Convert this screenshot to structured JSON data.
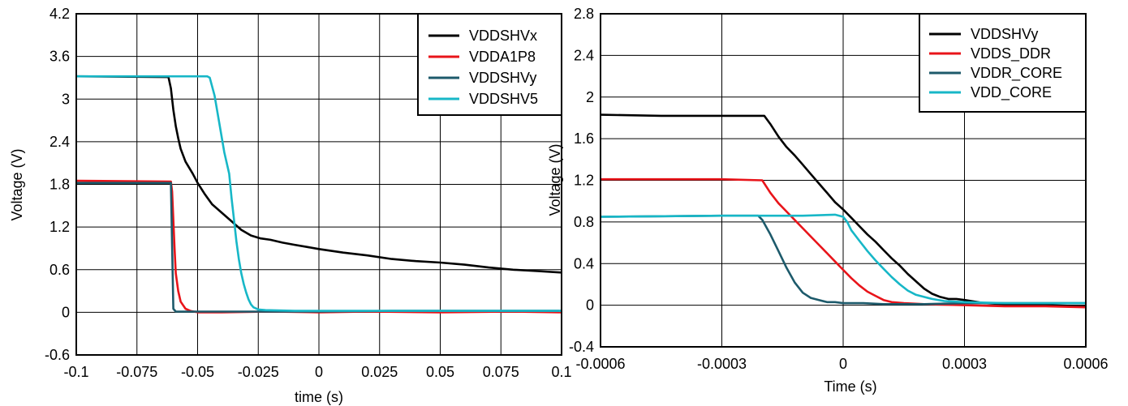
{
  "chart_data": [
    {
      "type": "line",
      "xlabel": "time (s)",
      "ylabel": "Voltage (V)",
      "xlim": [
        -0.1,
        0.1
      ],
      "ylim": [
        -0.6,
        4.2
      ],
      "xticks": [
        -0.1,
        -0.075,
        -0.05,
        -0.025,
        0,
        0.025,
        0.05,
        0.075,
        0.1
      ],
      "xtick_labels": [
        "-0.1",
        "-0.075",
        "-0.05",
        "-0.025",
        "0",
        "0.025",
        "0.05",
        "0.075",
        "0.1"
      ],
      "yticks": [
        -0.6,
        0,
        0.6,
        1.2,
        1.8,
        2.4,
        3,
        3.6,
        4.2
      ],
      "ytick_labels": [
        "-0.6",
        "0",
        "0.6",
        "1.2",
        "1.8",
        "2.4",
        "3",
        "3.6",
        "4.2"
      ],
      "grid": true,
      "legend_position": "top-right",
      "series": [
        {
          "name": "VDDSHVx",
          "color": "#000000",
          "x": [
            -0.1,
            -0.062,
            -0.061,
            -0.06,
            -0.059,
            -0.058,
            -0.057,
            -0.055,
            -0.052,
            -0.05,
            -0.047,
            -0.044,
            -0.04,
            -0.036,
            -0.032,
            -0.028,
            -0.024,
            -0.02,
            -0.015,
            -0.01,
            -0.005,
            0,
            0.01,
            0.02,
            0.03,
            0.04,
            0.05,
            0.06,
            0.07,
            0.08,
            0.09,
            0.1
          ],
          "y": [
            3.32,
            3.31,
            3.15,
            2.85,
            2.62,
            2.45,
            2.3,
            2.12,
            1.95,
            1.82,
            1.66,
            1.52,
            1.4,
            1.28,
            1.16,
            1.08,
            1.04,
            1.02,
            0.98,
            0.95,
            0.92,
            0.89,
            0.84,
            0.8,
            0.75,
            0.72,
            0.7,
            0.67,
            0.63,
            0.6,
            0.58,
            0.56
          ]
        },
        {
          "name": "VDDA1P8",
          "color": "#e8141a",
          "x": [
            -0.1,
            -0.061,
            -0.0605,
            -0.06,
            -0.0595,
            -0.059,
            -0.058,
            -0.057,
            -0.055,
            -0.053,
            -0.05,
            -0.04,
            -0.02,
            0,
            0.02,
            0.05,
            0.08,
            0.1
          ],
          "y": [
            1.85,
            1.84,
            1.7,
            1.3,
            0.9,
            0.55,
            0.3,
            0.15,
            0.05,
            0.02,
            0,
            0,
            0.01,
            0,
            0.01,
            0,
            0.01,
            0
          ]
        },
        {
          "name": "VDDSHVy",
          "color": "#1d5a6b",
          "x": [
            -0.1,
            -0.061,
            -0.06,
            -0.059,
            -0.05,
            -0.03,
            0,
            0.03,
            0.06,
            0.1
          ],
          "y": [
            1.82,
            1.82,
            0.05,
            0.01,
            0.01,
            0.01,
            0.01,
            0.02,
            0.02,
            0.02
          ]
        },
        {
          "name": "VDDSHV5",
          "color": "#17b7c7",
          "x": [
            -0.1,
            -0.046,
            -0.045,
            -0.043,
            -0.041,
            -0.039,
            -0.037,
            -0.036,
            -0.035,
            -0.034,
            -0.033,
            -0.032,
            -0.031,
            -0.03,
            -0.029,
            -0.028,
            -0.027,
            -0.025,
            -0.022,
            -0.01,
            0,
            0.05,
            0.1
          ],
          "y": [
            3.32,
            3.32,
            3.3,
            3.05,
            2.65,
            2.25,
            1.95,
            1.6,
            1.3,
            1.0,
            0.75,
            0.55,
            0.4,
            0.28,
            0.18,
            0.11,
            0.07,
            0.04,
            0.03,
            0.02,
            0.02,
            0.02,
            0.02
          ]
        }
      ]
    },
    {
      "type": "line",
      "xlabel": "Time (s)",
      "ylabel": "Voltage (V)",
      "xlim": [
        -0.0006,
        0.0006
      ],
      "ylim": [
        -0.4,
        2.8
      ],
      "xticks": [
        -0.0006,
        -0.0003,
        0,
        0.0003,
        0.0006
      ],
      "xtick_labels": [
        "-0.0006",
        "-0.0003",
        "0",
        "0.0003",
        "0.0006"
      ],
      "yticks": [
        -0.4,
        0,
        0.4,
        0.8,
        1.2,
        1.6,
        2,
        2.4,
        2.8
      ],
      "ytick_labels": [
        "-0.4",
        "0",
        "0.4",
        "0.8",
        "1.2",
        "1.6",
        "2",
        "2.4",
        "2.8"
      ],
      "grid": true,
      "legend_position": "top-right",
      "series": [
        {
          "name": "VDDSHVy",
          "color": "#000000",
          "x": [
            -0.0006,
            -0.00045,
            -0.0003,
            -0.000195,
            -0.00018,
            -0.00016,
            -0.00014,
            -0.00012,
            -0.0001,
            -8e-05,
            -6e-05,
            -4e-05,
            -2e-05,
            0,
            2e-05,
            4e-05,
            6e-05,
            8e-05,
            0.0001,
            0.00012,
            0.00014,
            0.00016,
            0.00018,
            0.0002,
            0.00022,
            0.00024,
            0.00026,
            0.00028,
            0.0003,
            0.00035,
            0.0004,
            0.0005,
            0.0006
          ],
          "y": [
            1.83,
            1.82,
            1.82,
            1.82,
            1.74,
            1.62,
            1.52,
            1.44,
            1.35,
            1.26,
            1.17,
            1.08,
            0.99,
            0.92,
            0.84,
            0.76,
            0.68,
            0.61,
            0.53,
            0.45,
            0.38,
            0.3,
            0.23,
            0.16,
            0.11,
            0.08,
            0.06,
            0.06,
            0.05,
            0.02,
            0.01,
            0.0,
            -0.01
          ]
        },
        {
          "name": "VDDS_DDR",
          "color": "#e8141a",
          "x": [
            -0.0006,
            -0.0003,
            -0.0002,
            -0.00018,
            -0.00016,
            -0.00014,
            -0.00012,
            -0.0001,
            -8e-05,
            -6e-05,
            -4e-05,
            -2e-05,
            0,
            2e-05,
            4e-05,
            6e-05,
            8e-05,
            0.0001,
            0.00012,
            0.00015,
            0.0002,
            0.0003,
            0.0004,
            0.0005,
            0.0006
          ],
          "y": [
            1.21,
            1.21,
            1.2,
            1.08,
            0.98,
            0.9,
            0.82,
            0.74,
            0.66,
            0.58,
            0.5,
            0.42,
            0.34,
            0.26,
            0.19,
            0.13,
            0.09,
            0.05,
            0.03,
            0.02,
            0.01,
            0.0,
            -0.01,
            -0.01,
            -0.02
          ]
        },
        {
          "name": "VDDR_CORE",
          "color": "#1d5a6b",
          "x": [
            -0.0006,
            -0.0003,
            -0.00021,
            -0.0002,
            -0.00018,
            -0.00016,
            -0.00014,
            -0.00012,
            -0.0001,
            -8e-05,
            -6e-05,
            -4e-05,
            -2e-05,
            0,
            5e-05,
            0.0001,
            0.0002,
            0.0003,
            0.0004,
            0.0005,
            0.0006
          ],
          "y": [
            0.85,
            0.86,
            0.86,
            0.82,
            0.68,
            0.52,
            0.36,
            0.22,
            0.12,
            0.07,
            0.05,
            0.03,
            0.03,
            0.02,
            0.02,
            0.01,
            0.01,
            0.02,
            0.02,
            0.02,
            0.02
          ]
        },
        {
          "name": "VDD_CORE",
          "color": "#17b7c7",
          "x": [
            -0.0006,
            -0.0003,
            -0.0001,
            -2e-05,
            0,
            1e-05,
            2e-05,
            4e-05,
            6e-05,
            8e-05,
            0.0001,
            0.00012,
            0.00014,
            0.00016,
            0.00018,
            0.0002,
            0.00022,
            0.00025,
            0.0003,
            0.0004,
            0.0005,
            0.0006
          ],
          "y": [
            0.85,
            0.86,
            0.86,
            0.87,
            0.85,
            0.8,
            0.72,
            0.62,
            0.52,
            0.43,
            0.35,
            0.27,
            0.2,
            0.14,
            0.1,
            0.08,
            0.06,
            0.04,
            0.03,
            0.02,
            0.02,
            0.02
          ]
        }
      ]
    }
  ]
}
